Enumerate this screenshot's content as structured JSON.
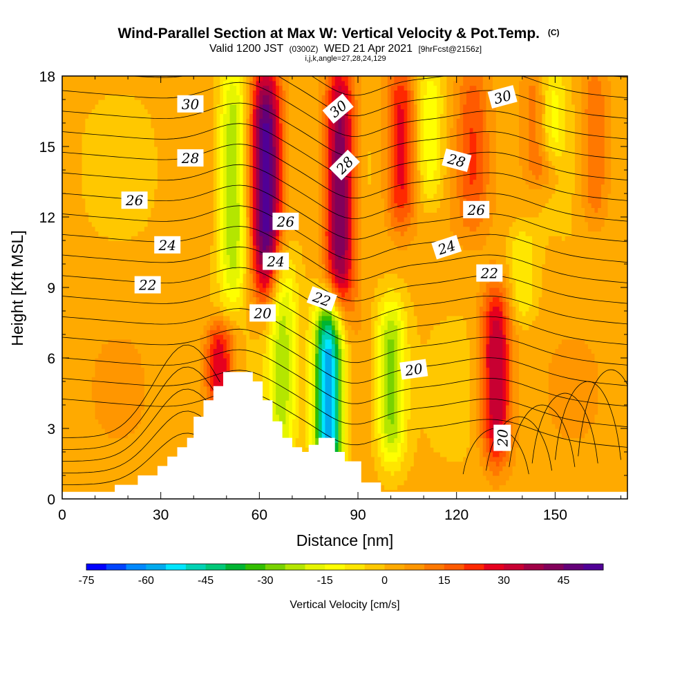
{
  "titles": {
    "main": "Wind-Parallel Section at Max W: Vertical Velocity & Pot.Temp.",
    "main_suffix": "(C)",
    "valid_prefix": "Valid 1200 JST",
    "valid_utc": "(0300Z)",
    "valid_date": "WED 21 Apr 2021",
    "forecast": "[9hrFcst@2156z]",
    "params": "i,j,k,angle=27,28,24,129"
  },
  "chart_data": {
    "type": "heatmap",
    "xlabel": "Distance [nm]",
    "ylabel": "Height [Kft MSL]",
    "xlim": [
      0,
      172
    ],
    "ylim": [
      0,
      18
    ],
    "x_ticks": [
      0,
      30,
      60,
      90,
      120,
      150
    ],
    "y_ticks": [
      0,
      3,
      6,
      9,
      12,
      15,
      18
    ],
    "field": "Vertical Velocity",
    "colorbar": {
      "label": "Vertical Velocity [cm/s]",
      "min": -75,
      "max": 55,
      "step": 5,
      "tick_values": [
        -75,
        -60,
        -45,
        -30,
        -15,
        0,
        15,
        30,
        45
      ],
      "colors": [
        "#0000ff",
        "#0044ff",
        "#0088ff",
        "#00aaee",
        "#00e5ff",
        "#00d2b4",
        "#00c878",
        "#00b432",
        "#32be00",
        "#78d200",
        "#b4e600",
        "#e6f500",
        "#ffff00",
        "#ffe600",
        "#ffc800",
        "#ffaa00",
        "#ff9600",
        "#ff7800",
        "#ff5a00",
        "#ff2800",
        "#e6001e",
        "#c80032",
        "#a00046",
        "#82005a",
        "#640078",
        "#500096"
      ]
    },
    "updrafts": [
      {
        "x": 62,
        "ymin": 9,
        "ymax": 18,
        "peak": 50
      },
      {
        "x": 84.5,
        "ymin": 8.5,
        "ymax": 18,
        "peak": 45
      },
      {
        "x": 132,
        "ymin": 2,
        "ymax": 8.5,
        "peak": 35
      },
      {
        "x": 48,
        "ymin": 4,
        "ymax": 7,
        "peak": 30
      },
      {
        "x": 103,
        "ymin": 12,
        "ymax": 18,
        "peak": 25
      },
      {
        "x": 125,
        "ymin": 12,
        "ymax": 18,
        "peak": 15
      },
      {
        "x": 145,
        "ymin": 14,
        "ymax": 18,
        "peak": 20
      },
      {
        "x": 162,
        "ymin": 12,
        "ymax": 18,
        "peak": 15
      }
    ],
    "downdrafts": [
      {
        "x": 52,
        "ymin": 9,
        "ymax": 18,
        "peak": -30
      },
      {
        "x": 81,
        "ymin": 1,
        "ymax": 8,
        "peak": -65
      },
      {
        "x": 100,
        "ymin": 2,
        "ymax": 8,
        "peak": -30
      },
      {
        "x": 67,
        "ymin": 2,
        "ymax": 10,
        "peak": -25
      },
      {
        "x": 112,
        "ymin": 13,
        "ymax": 18,
        "peak": -18
      },
      {
        "x": 148,
        "ymin": 15,
        "ymax": 18,
        "peak": -20
      },
      {
        "x": 140,
        "ymin": 8,
        "ymax": 11,
        "peak": -12
      }
    ],
    "terrain": [
      [
        0,
        0.3
      ],
      [
        16,
        0.3
      ],
      [
        16,
        0.6
      ],
      [
        23,
        0.6
      ],
      [
        23,
        1.0
      ],
      [
        29,
        1.0
      ],
      [
        29,
        1.4
      ],
      [
        32,
        1.4
      ],
      [
        32,
        1.8
      ],
      [
        35,
        1.8
      ],
      [
        35,
        2.2
      ],
      [
        38,
        2.2
      ],
      [
        38,
        2.6
      ],
      [
        40,
        2.6
      ],
      [
        40,
        3.5
      ],
      [
        43,
        3.5
      ],
      [
        43,
        4.2
      ],
      [
        46,
        4.2
      ],
      [
        46,
        4.8
      ],
      [
        49,
        4.8
      ],
      [
        49,
        5.4
      ],
      [
        58,
        5.4
      ],
      [
        58,
        5.0
      ],
      [
        61,
        5.0
      ],
      [
        61,
        4.2
      ],
      [
        64,
        4.2
      ],
      [
        64,
        3.3
      ],
      [
        67,
        3.3
      ],
      [
        67,
        2.6
      ],
      [
        70,
        2.6
      ],
      [
        70,
        2.2
      ],
      [
        73,
        2.2
      ],
      [
        73,
        2.0
      ],
      [
        75,
        2.0
      ],
      [
        75,
        2.3
      ],
      [
        78,
        2.3
      ],
      [
        78,
        2.6
      ],
      [
        83,
        2.6
      ],
      [
        83,
        2.0
      ],
      [
        86,
        2.0
      ],
      [
        86,
        1.6
      ],
      [
        91,
        1.6
      ],
      [
        91,
        0.7
      ],
      [
        97,
        0.7
      ],
      [
        97,
        0.3
      ],
      [
        172,
        0.3
      ]
    ],
    "theta_levels": [
      20,
      22,
      24,
      26,
      28,
      30
    ],
    "contour_labels": [
      {
        "value": "30",
        "x": 39,
        "y": 16.8,
        "angle": 0
      },
      {
        "value": "30",
        "x": 84,
        "y": 16.6,
        "angle": -40
      },
      {
        "value": "30",
        "x": 134,
        "y": 17.1,
        "angle": -15
      },
      {
        "value": "28",
        "x": 39,
        "y": 14.5,
        "angle": 0
      },
      {
        "value": "28",
        "x": 86,
        "y": 14.2,
        "angle": -45
      },
      {
        "value": "28",
        "x": 120,
        "y": 14.4,
        "angle": 15
      },
      {
        "value": "26",
        "x": 22,
        "y": 12.7,
        "angle": 0
      },
      {
        "value": "26",
        "x": 68,
        "y": 11.8,
        "angle": 0
      },
      {
        "value": "26",
        "x": 126,
        "y": 12.3,
        "angle": 0
      },
      {
        "value": "24",
        "x": 32,
        "y": 10.8,
        "angle": 0
      },
      {
        "value": "24",
        "x": 65,
        "y": 10.1,
        "angle": 0
      },
      {
        "value": "24",
        "x": 117,
        "y": 10.7,
        "angle": -18
      },
      {
        "value": "22",
        "x": 26,
        "y": 9.1,
        "angle": 0
      },
      {
        "value": "22",
        "x": 79,
        "y": 8.5,
        "angle": 20
      },
      {
        "value": "22",
        "x": 130,
        "y": 9.6,
        "angle": 0
      },
      {
        "value": "20",
        "x": 61,
        "y": 7.9,
        "angle": 0
      },
      {
        "value": "20",
        "x": 107,
        "y": 5.5,
        "angle": -8
      },
      {
        "value": "20",
        "x": 134,
        "y": 2.6,
        "angle": -90
      }
    ]
  }
}
